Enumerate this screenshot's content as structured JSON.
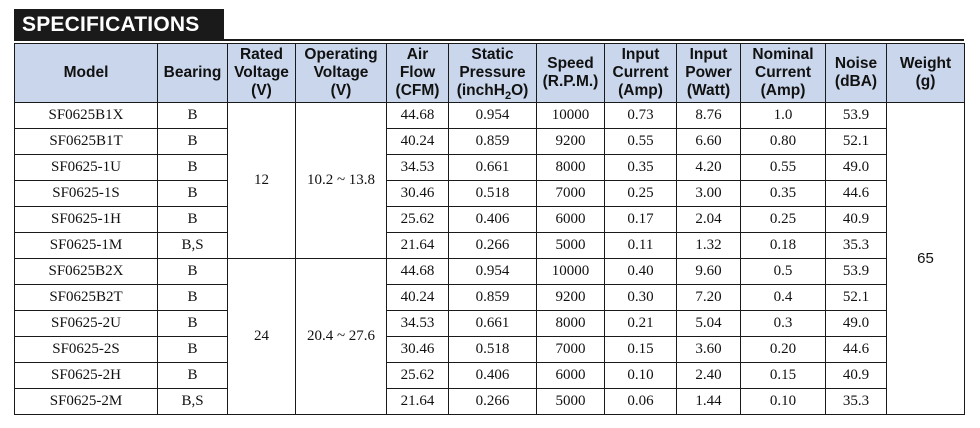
{
  "title": "SPECIFICATIONS",
  "headers": {
    "model": "Model",
    "bearing": "Bearing",
    "rated_voltage": [
      "Rated",
      "Voltage",
      "(V)"
    ],
    "operating_voltage": [
      "Operating",
      "Voltage",
      "(V)"
    ],
    "air_flow": [
      "Air",
      "Flow",
      "(CFM)"
    ],
    "static_pressure": [
      "Static",
      "Pressure",
      "(inchH",
      "2",
      "O)"
    ],
    "speed": [
      "Speed",
      "(R.P.M.)"
    ],
    "input_current": [
      "Input",
      "Current",
      "(Amp)"
    ],
    "input_power": [
      "Input",
      "Power",
      "(Watt)"
    ],
    "nominal_current": [
      "Nominal",
      "Current",
      "(Amp)"
    ],
    "noise": [
      "Noise",
      "(dBA)"
    ],
    "weight": [
      "Weight",
      "(g)"
    ]
  },
  "groups": [
    {
      "rated_voltage": "12",
      "operating_voltage": "10.2 ~ 13.8",
      "rows": [
        {
          "model": "SF0625B1X",
          "bearing": "B",
          "air_flow": "44.68",
          "static_pressure": "0.954",
          "speed": "10000",
          "input_current": "0.73",
          "input_power": "8.76",
          "nominal_current": "1.0",
          "noise": "53.9"
        },
        {
          "model": "SF0625B1T",
          "bearing": "B",
          "air_flow": "40.24",
          "static_pressure": "0.859",
          "speed": "9200",
          "input_current": "0.55",
          "input_power": "6.60",
          "nominal_current": "0.80",
          "noise": "52.1"
        },
        {
          "model": "SF0625-1U",
          "bearing": "B",
          "air_flow": "34.53",
          "static_pressure": "0.661",
          "speed": "8000",
          "input_current": "0.35",
          "input_power": "4.20",
          "nominal_current": "0.55",
          "noise": "49.0"
        },
        {
          "model": "SF0625-1S",
          "bearing": "B",
          "air_flow": "30.46",
          "static_pressure": "0.518",
          "speed": "7000",
          "input_current": "0.25",
          "input_power": "3.00",
          "nominal_current": "0.35",
          "noise": "44.6"
        },
        {
          "model": "SF0625-1H",
          "bearing": "B",
          "air_flow": "25.62",
          "static_pressure": "0.406",
          "speed": "6000",
          "input_current": "0.17",
          "input_power": "2.04",
          "nominal_current": "0.25",
          "noise": "40.9"
        },
        {
          "model": "SF0625-1M",
          "bearing": "B,S",
          "air_flow": "21.64",
          "static_pressure": "0.266",
          "speed": "5000",
          "input_current": "0.11",
          "input_power": "1.32",
          "nominal_current": "0.18",
          "noise": "35.3"
        }
      ]
    },
    {
      "rated_voltage": "24",
      "operating_voltage": "20.4 ~ 27.6",
      "rows": [
        {
          "model": "SF0625B2X",
          "bearing": "B",
          "air_flow": "44.68",
          "static_pressure": "0.954",
          "speed": "10000",
          "input_current": "0.40",
          "input_power": "9.60",
          "nominal_current": "0.5",
          "noise": "53.9"
        },
        {
          "model": "SF0625B2T",
          "bearing": "B",
          "air_flow": "40.24",
          "static_pressure": "0.859",
          "speed": "9200",
          "input_current": "0.30",
          "input_power": "7.20",
          "nominal_current": "0.4",
          "noise": "52.1"
        },
        {
          "model": "SF0625-2U",
          "bearing": "B",
          "air_flow": "34.53",
          "static_pressure": "0.661",
          "speed": "8000",
          "input_current": "0.21",
          "input_power": "5.04",
          "nominal_current": "0.3",
          "noise": "49.0"
        },
        {
          "model": "SF0625-2S",
          "bearing": "B",
          "air_flow": "30.46",
          "static_pressure": "0.518",
          "speed": "7000",
          "input_current": "0.15",
          "input_power": "3.60",
          "nominal_current": "0.20",
          "noise": "44.6"
        },
        {
          "model": "SF0625-2H",
          "bearing": "B",
          "air_flow": "25.62",
          "static_pressure": "0.406",
          "speed": "6000",
          "input_current": "0.10",
          "input_power": "2.40",
          "nominal_current": "0.15",
          "noise": "40.9"
        },
        {
          "model": "SF0625-2M",
          "bearing": "B,S",
          "air_flow": "21.64",
          "static_pressure": "0.266",
          "speed": "5000",
          "input_current": "0.06",
          "input_power": "1.44",
          "nominal_current": "0.10",
          "noise": "35.3"
        }
      ]
    }
  ],
  "weight": "65"
}
